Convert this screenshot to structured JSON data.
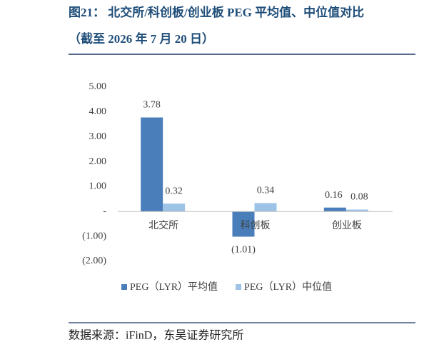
{
  "chart_data": {
    "type": "bar",
    "title": "图21：  北交所/科创板/创业板 PEG 平均值、中位值对比",
    "subtitle": "（截至 2026 年 7 月 20 日）",
    "source": "数据来源：iFinD，东吴证券研究所",
    "categories": [
      "北交所",
      "科创板",
      "创业板"
    ],
    "series": [
      {
        "name": "PEG（LYR）平均值",
        "color": "#4a7ebb",
        "values": [
          3.78,
          -1.01,
          0.16
        ],
        "value_labels": [
          "3.78",
          "(1.01)",
          "0.16"
        ]
      },
      {
        "name": "PEG（LYR）中位值",
        "color": "#9dc3e6",
        "values": [
          0.32,
          0.34,
          0.08
        ]
      }
    ],
    "ylim": [
      -2,
      5
    ],
    "yticks": [
      {
        "value": -2,
        "label": "(2.00)"
      },
      {
        "value": -1,
        "label": "(1.00)"
      },
      {
        "value": 0,
        "label": "-"
      },
      {
        "value": 1,
        "label": "1.00"
      },
      {
        "value": 2,
        "label": "2.00"
      },
      {
        "value": 3,
        "label": "3.00"
      },
      {
        "value": 4,
        "label": "4.00"
      },
      {
        "value": 5,
        "label": "5.00"
      }
    ],
    "grid": false
  }
}
